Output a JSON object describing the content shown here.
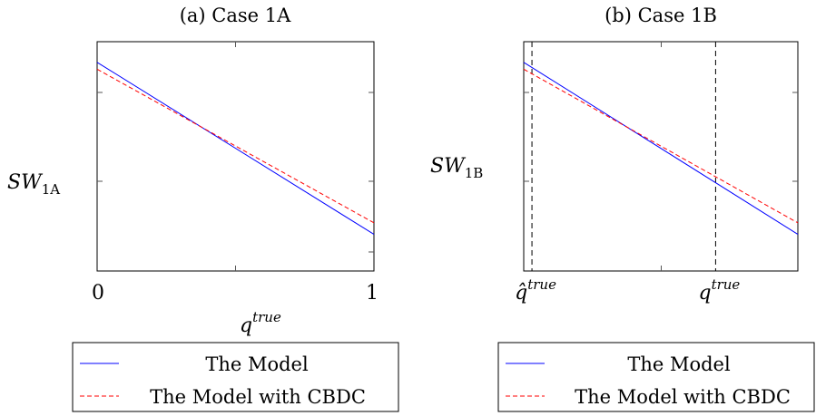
{
  "chart_data": [
    {
      "type": "line",
      "title": "(a) Case 1A",
      "ylabel": {
        "base": "SW",
        "sub": "1A"
      },
      "xlabel": {
        "base": "q",
        "sup": "true"
      },
      "x_ticks": [
        "0",
        "1"
      ],
      "xlim": [
        0,
        1
      ],
      "ylim": [
        0,
        1
      ],
      "grid": false,
      "legend_placement": "below",
      "series": [
        {
          "name": "The Model",
          "color": "#0000ff",
          "dash": "solid",
          "x": [
            0,
            1
          ],
          "y": [
            0.91,
            0.16
          ]
        },
        {
          "name": "The Model with CBDC",
          "color": "#ff0000",
          "dash": "dashed",
          "x": [
            0,
            1
          ],
          "y": [
            0.88,
            0.21
          ]
        }
      ]
    },
    {
      "type": "line",
      "title": "(b) Case 1B",
      "ylabel": {
        "base": "SW",
        "sub": "1B"
      },
      "x_ticks": [
        {
          "base": "q̂",
          "sup": "true",
          "x": 0.03
        },
        {
          "base": "q",
          "sup": "true",
          "x": 0.7
        }
      ],
      "vlines": [
        0.03,
        0.7
      ],
      "xlim": [
        0,
        1
      ],
      "ylim": [
        0,
        1
      ],
      "grid": false,
      "legend_placement": "below",
      "series": [
        {
          "name": "The Model",
          "color": "#0000ff",
          "dash": "solid",
          "x": [
            0,
            1
          ],
          "y": [
            0.91,
            0.16
          ]
        },
        {
          "name": "The Model with CBDC",
          "color": "#ff0000",
          "dash": "dashed",
          "x": [
            0,
            1
          ],
          "y": [
            0.88,
            0.21
          ]
        }
      ]
    }
  ]
}
